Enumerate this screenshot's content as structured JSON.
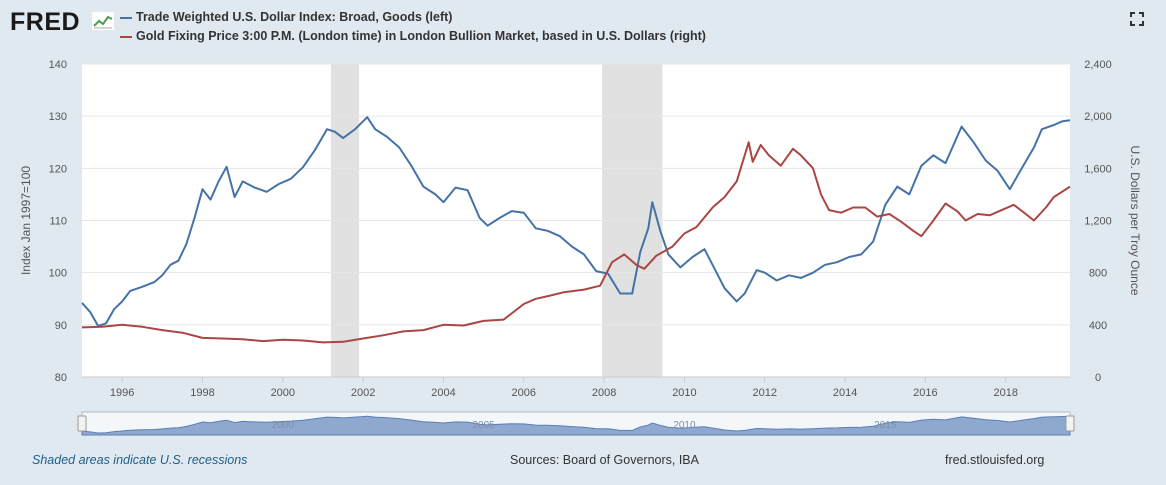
{
  "header": {
    "logo_text": "FRED",
    "logo_icon": "chart-line-icon",
    "fullscreen_icon": "fullscreen-icon"
  },
  "legend": {
    "items": [
      {
        "label": "Trade Weighted U.S. Dollar Index: Broad, Goods (left)",
        "color": "#4572a7"
      },
      {
        "label": "Gold Fixing Price 3:00 P.M. (London time) in London Bullion Market, based in U.S. Dollars (right)",
        "color": "#aa4643"
      }
    ]
  },
  "footer": {
    "recession_note": "Shaded areas indicate U.S. recessions",
    "sources": "Sources: Board of Governors, IBA",
    "site": "fred.stlouisfed.org"
  },
  "colors": {
    "plot_background": "#ffffff",
    "page_background": "#e1e9f0",
    "recession": "#e1e1e1",
    "navigator": "#8fa8d0"
  },
  "chart_data": {
    "type": "line",
    "title": "",
    "xlabel": "",
    "ylabel": "Index Jan 1997=100",
    "ylabel_right": "U.S. Dollars per Troy Ounce",
    "xlim": [
      1995.0,
      2019.6
    ],
    "ylim": [
      80,
      140
    ],
    "ylim_right": [
      0,
      2400
    ],
    "x_ticks": [
      1996,
      1998,
      2000,
      2002,
      2004,
      2006,
      2008,
      2010,
      2012,
      2014,
      2016,
      2018
    ],
    "x_tick_labels": [
      "1996",
      "1998",
      "2000",
      "2002",
      "2004",
      "2006",
      "2008",
      "2010",
      "2012",
      "2014",
      "2016",
      "2018"
    ],
    "y_ticks": [
      80,
      90,
      100,
      110,
      120,
      130,
      140
    ],
    "y_tick_labels": [
      "80",
      "90",
      "100",
      "110",
      "120",
      "130",
      "140"
    ],
    "y_ticks_right": [
      0,
      400,
      800,
      1200,
      1600,
      2000,
      2400
    ],
    "y_tick_labels_right": [
      "0",
      "400",
      "800",
      "1,200",
      "1,600",
      "2,000",
      "2,400"
    ],
    "grid": true,
    "legend_position": "top-left",
    "recessions": [
      [
        2001.2,
        2001.9
      ],
      [
        2007.95,
        2009.45
      ]
    ],
    "navigator_labels": [
      "2000",
      "2005",
      "2010",
      "2015"
    ],
    "series": [
      {
        "name": "Trade Weighted U.S. Dollar Index: Broad, Goods (left)",
        "axis": "left",
        "color": "#4572a7",
        "x": [
          1995.0,
          1995.2,
          1995.4,
          1995.6,
          1995.8,
          1996.0,
          1996.2,
          1996.5,
          1996.8,
          1997.0,
          1997.2,
          1997.4,
          1997.6,
          1997.8,
          1998.0,
          1998.2,
          1998.4,
          1998.6,
          1998.8,
          1999.0,
          1999.3,
          1999.6,
          1999.9,
          2000.2,
          2000.5,
          2000.8,
          2001.1,
          2001.3,
          2001.5,
          2001.8,
          2002.1,
          2002.3,
          2002.6,
          2002.9,
          2003.2,
          2003.5,
          2003.8,
          2004.0,
          2004.3,
          2004.6,
          2004.9,
          2005.1,
          2005.4,
          2005.7,
          2006.0,
          2006.3,
          2006.6,
          2006.9,
          2007.2,
          2007.5,
          2007.8,
          2008.1,
          2008.4,
          2008.7,
          2008.9,
          2009.1,
          2009.2,
          2009.4,
          2009.6,
          2009.9,
          2010.2,
          2010.5,
          2010.8,
          2011.0,
          2011.3,
          2011.5,
          2011.8,
          2012.0,
          2012.3,
          2012.6,
          2012.9,
          2013.2,
          2013.5,
          2013.8,
          2014.1,
          2014.4,
          2014.7,
          2015.0,
          2015.3,
          2015.6,
          2015.9,
          2016.2,
          2016.5,
          2016.9,
          2017.2,
          2017.5,
          2017.8,
          2018.1,
          2018.4,
          2018.7,
          2018.9,
          2019.2,
          2019.4,
          2019.6
        ],
        "y": [
          94.2,
          92.5,
          89.8,
          90.3,
          93.0,
          94.5,
          96.5,
          97.3,
          98.2,
          99.5,
          101.5,
          102.3,
          105.5,
          110.5,
          116.0,
          114.0,
          117.5,
          120.3,
          114.5,
          117.5,
          116.3,
          115.5,
          117.0,
          118.0,
          120.2,
          123.5,
          127.5,
          127.0,
          125.8,
          127.5,
          129.8,
          127.5,
          126.0,
          124.0,
          120.5,
          116.5,
          115.0,
          113.5,
          116.3,
          115.8,
          110.5,
          109.0,
          110.5,
          111.8,
          111.5,
          108.5,
          108.0,
          107.0,
          105.0,
          103.5,
          100.3,
          99.8,
          96.0,
          96.0,
          104.0,
          108.5,
          113.5,
          108.0,
          103.5,
          101.0,
          103.0,
          104.5,
          100.0,
          97.0,
          94.5,
          96.0,
          100.5,
          100.0,
          98.5,
          99.5,
          99.0,
          100.0,
          101.5,
          102.0,
          103.0,
          103.5,
          106.0,
          113.0,
          116.5,
          115.0,
          120.5,
          122.5,
          121.0,
          128.0,
          125.0,
          121.5,
          119.5,
          116.0,
          120.0,
          124.0,
          127.5,
          128.3,
          129.0,
          129.2
        ]
      },
      {
        "name": "Gold Fixing Price 3:00 P.M. (London time) in London Bullion Market, based in U.S. Dollars (right)",
        "axis": "right",
        "color": "#aa4643",
        "x": [
          1995.0,
          1995.5,
          1996.0,
          1996.5,
          1997.0,
          1997.5,
          1998.0,
          1998.5,
          1999.0,
          1999.5,
          2000.0,
          2000.5,
          2001.0,
          2001.5,
          2002.0,
          2002.5,
          2003.0,
          2003.5,
          2004.0,
          2004.5,
          2005.0,
          2005.5,
          2006.0,
          2006.3,
          2006.6,
          2007.0,
          2007.5,
          2007.9,
          2008.2,
          2008.5,
          2008.8,
          2009.0,
          2009.3,
          2009.7,
          2010.0,
          2010.3,
          2010.7,
          2011.0,
          2011.3,
          2011.6,
          2011.7,
          2011.9,
          2012.1,
          2012.4,
          2012.7,
          2012.9,
          2013.2,
          2013.4,
          2013.6,
          2013.9,
          2014.2,
          2014.5,
          2014.8,
          2015.1,
          2015.4,
          2015.7,
          2015.9,
          2016.2,
          2016.5,
          2016.8,
          2017.0,
          2017.3,
          2017.6,
          2017.9,
          2018.2,
          2018.5,
          2018.7,
          2019.0,
          2019.2,
          2019.4,
          2019.6
        ],
        "y": [
          380,
          385,
          400,
          385,
          360,
          340,
          300,
          295,
          290,
          275,
          285,
          280,
          265,
          270,
          295,
          320,
          350,
          360,
          400,
          395,
          430,
          440,
          560,
          600,
          620,
          650,
          670,
          700,
          880,
          940,
          860,
          830,
          930,
          1000,
          1100,
          1150,
          1300,
          1380,
          1500,
          1800,
          1650,
          1780,
          1700,
          1620,
          1750,
          1700,
          1600,
          1400,
          1280,
          1260,
          1300,
          1300,
          1230,
          1250,
          1190,
          1120,
          1080,
          1200,
          1330,
          1270,
          1200,
          1250,
          1240,
          1280,
          1320,
          1250,
          1200,
          1300,
          1380,
          1420,
          1460
        ]
      }
    ]
  }
}
